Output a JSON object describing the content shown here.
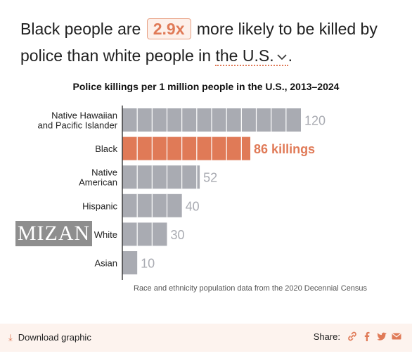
{
  "headline": {
    "part1": "Black people are",
    "multiplier": "2.9x",
    "part2": "more likely to be killed by police than white people in",
    "region": "the U.S.",
    "end": "."
  },
  "chart_data": {
    "type": "bar",
    "orientation": "horizontal",
    "title": "Police killings per 1 million people in the U.S., 2013–2024",
    "categories": [
      [
        "Native Hawaiian",
        "and Pacific Islander"
      ],
      [
        "Black"
      ],
      [
        "Native",
        "American"
      ],
      [
        "Hispanic"
      ],
      [
        "White"
      ],
      [
        "Asian"
      ]
    ],
    "values": [
      120,
      86,
      52,
      40,
      30,
      10
    ],
    "value_labels": [
      "120",
      "86 killings",
      "52",
      "40",
      "30",
      "10"
    ],
    "highlight_index": 1,
    "colors": {
      "default": "#a9abb2",
      "highlight": "#e07a57",
      "label_default": "#a9abb2"
    },
    "xlim": [
      0,
      120
    ],
    "segment_size": 10,
    "xlabel": "",
    "ylabel": ""
  },
  "watermark": "MIZAN",
  "source": "Race and ethnicity population data from the 2020 Decennial Census",
  "footer": {
    "download_label": "Download graphic",
    "share_label": "Share:",
    "share_icons": [
      "link-icon",
      "facebook-icon",
      "twitter-icon",
      "email-icon"
    ],
    "accent": "#e07a57"
  }
}
